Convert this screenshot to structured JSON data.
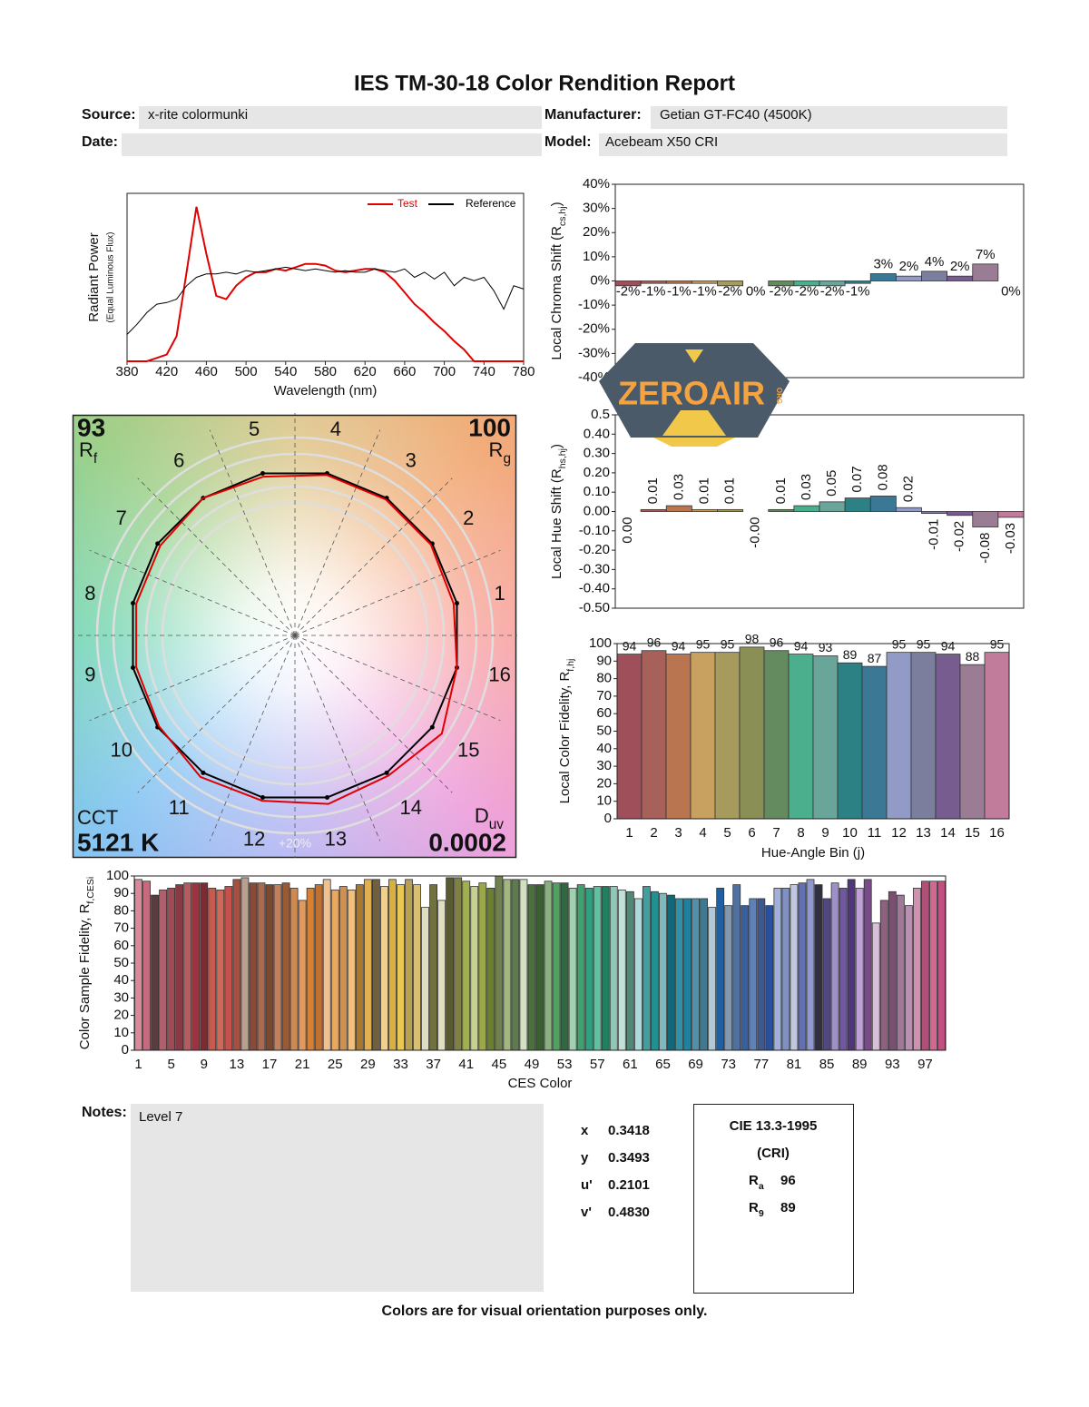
{
  "header": {
    "title": "IES TM-30-18 Color Rendition Report",
    "source_label": "Source:",
    "source": "x-rite colormunki",
    "manufacturer_label": "Manufacturer:",
    "manufacturer": "Getian GT-FC40 (4500K)",
    "date_label": "Date:",
    "model_label": "Model:",
    "model": "Acebeam X50 CRI"
  },
  "watermark": {
    "text": "ZEROAIR",
    "suffix": "ORG"
  },
  "chart_data": [
    {
      "type": "line",
      "y_label": "Radiant Power",
      "y_sublabel": "(Equal Luminous Flux)",
      "x_label": "Wavelength (nm)",
      "x": [
        380,
        390,
        400,
        410,
        420,
        430,
        440,
        450,
        460,
        470,
        480,
        490,
        500,
        510,
        520,
        530,
        540,
        550,
        560,
        570,
        580,
        590,
        600,
        610,
        620,
        630,
        640,
        650,
        660,
        670,
        680,
        690,
        700,
        710,
        720,
        730,
        740,
        750,
        760,
        770,
        780
      ],
      "xlim": [
        380,
        780
      ],
      "xticks": [
        380,
        420,
        460,
        500,
        540,
        580,
        620,
        660,
        700,
        740,
        780
      ],
      "ylim": [
        0,
        1
      ],
      "legend": "upper right",
      "series": [
        {
          "name": "Test",
          "color": "#e00000",
          "values": [
            0,
            0,
            0,
            0.02,
            0.04,
            0.15,
            0.53,
            0.92,
            0.64,
            0.39,
            0.37,
            0.45,
            0.5,
            0.53,
            0.53,
            0.55,
            0.54,
            0.56,
            0.58,
            0.58,
            0.57,
            0.54,
            0.53,
            0.54,
            0.55,
            0.55,
            0.53,
            0.48,
            0.41,
            0.34,
            0.29,
            0.23,
            0.18,
            0.12,
            0.07,
            0,
            0,
            0,
            0,
            0,
            0
          ]
        },
        {
          "name": "Reference",
          "color": "#000000",
          "values": [
            0.16,
            0.22,
            0.29,
            0.34,
            0.35,
            0.37,
            0.45,
            0.5,
            0.52,
            0.52,
            0.53,
            0.52,
            0.54,
            0.53,
            0.54,
            0.55,
            0.56,
            0.55,
            0.54,
            0.55,
            0.54,
            0.53,
            0.54,
            0.53,
            0.53,
            0.55,
            0.54,
            0.53,
            0.55,
            0.5,
            0.53,
            0.49,
            0.53,
            0.45,
            0.5,
            0.48,
            0.5,
            0.42,
            0.31,
            0.45,
            0.43
          ]
        }
      ]
    },
    {
      "type": "bar",
      "y_label": {
        "text": "Local Chroma Shift (R",
        "sub": "cs,hj",
        "end": ")"
      },
      "ylim": [
        -40,
        40
      ],
      "yticks": [
        {
          "value": -40,
          "label": "-40%"
        },
        {
          "value": -30,
          "label": "-30%"
        },
        {
          "value": -20,
          "label": "-20%"
        },
        {
          "value": -10,
          "label": "-10%"
        },
        {
          "value": 0,
          "label": "0%"
        },
        {
          "value": 10,
          "label": "10%"
        },
        {
          "value": 20,
          "label": "20%"
        },
        {
          "value": 30,
          "label": "30%"
        },
        {
          "value": 40,
          "label": "40%"
        }
      ],
      "values": [
        -2,
        -1,
        -1,
        -1,
        -2,
        0,
        -2,
        -2,
        -2,
        -1,
        3,
        2,
        4,
        2,
        7,
        0
      ],
      "value_labels": [
        "-2%",
        "-1%",
        "-1%",
        "-1%",
        "-2%",
        "0%",
        "-2%",
        "-2%",
        "-2%",
        "-1%",
        "3%",
        "2%",
        "4%",
        "2%",
        "7%",
        "0%"
      ],
      "colors": [
        "#9e4f5a",
        "#a8605a",
        "#b8754f",
        "#c8a060",
        "#a79a5d",
        "#8a8f55",
        "#648a60",
        "#4bae8c",
        "#6aa59a",
        "#2c8185",
        "#3b7895",
        "#929bc6",
        "#7c7e9e",
        "#775c8f",
        "#9a7d94",
        "#c27c9b"
      ]
    },
    {
      "type": "bar",
      "y_label": {
        "text": "Local Hue Shift (R",
        "sub": "hs,hj",
        "end": ")"
      },
      "ylim": [
        -0.5,
        0.5
      ],
      "yticks": [
        {
          "value": -0.5,
          "label": "-0.50"
        },
        {
          "value": -0.4,
          "label": "-0.40"
        },
        {
          "value": -0.3,
          "label": "-0.30"
        },
        {
          "value": -0.2,
          "label": "-0.20"
        },
        {
          "value": -0.1,
          "label": "-0.10"
        },
        {
          "value": 0,
          "label": "0.00"
        },
        {
          "value": 0.1,
          "label": "0.10"
        },
        {
          "value": 0.2,
          "label": "0.20"
        },
        {
          "value": 0.3,
          "label": "0.30"
        },
        {
          "value": 0.4,
          "label": "0.40"
        },
        0.5
      ],
      "values": [
        0,
        0.01,
        0.03,
        0.01,
        0.01,
        0,
        0.01,
        0.03,
        0.05,
        0.07,
        0.08,
        0.02,
        -0.01,
        -0.02,
        -0.08,
        -0.03
      ],
      "value_labels": [
        "0.00",
        "0.01",
        "0.03",
        "0.01",
        "0.01",
        "-0.00",
        "0.01",
        "0.03",
        "0.05",
        "0.07",
        "0.08",
        "0.02",
        "-0.01",
        "-0.02",
        "-0.08",
        "-0.03"
      ],
      "colors": [
        "#9e4f5a",
        "#a8605a",
        "#b8754f",
        "#c8a060",
        "#a79a5d",
        "#8a8f55",
        "#648a60",
        "#4bae8c",
        "#6aa59a",
        "#2c8185",
        "#3b7895",
        "#929bc6",
        "#7c7e9e",
        "#775c8f",
        "#9a7d94",
        "#c27c9b"
      ]
    },
    {
      "type": "bar",
      "y_label": {
        "text": "Local Color Fidelity, R",
        "sub": "f,hj",
        "end": ""
      },
      "x_label": "Hue-Angle Bin (j)",
      "categories": [
        1,
        2,
        3,
        4,
        5,
        6,
        7,
        8,
        9,
        10,
        11,
        12,
        13,
        14,
        15,
        16
      ],
      "ylim": [
        0,
        100
      ],
      "yticks": [
        0,
        10,
        20,
        30,
        40,
        50,
        60,
        70,
        80,
        90,
        100
      ],
      "data_labels": true,
      "values": [
        94,
        96,
        94,
        95,
        95,
        98,
        96,
        94,
        93,
        89,
        87,
        95,
        95,
        94,
        88,
        95
      ],
      "colors": [
        "#9e4f5a",
        "#a8605a",
        "#b8754f",
        "#c8a060",
        "#a79a5d",
        "#8a8f55",
        "#648a60",
        "#4bae8c",
        "#6aa59a",
        "#2c8185",
        "#3b7895",
        "#929bc6",
        "#7c7e9e",
        "#775c8f",
        "#9a7d94",
        "#c27c9b"
      ]
    },
    {
      "type": "polar",
      "categories": [
        1,
        2,
        3,
        4,
        5,
        6,
        7,
        8,
        9,
        10,
        11,
        12,
        13,
        14,
        15,
        16
      ],
      "ring_label": "+20%",
      "series": [
        {
          "color": "#e00000",
          "values": [
            0.98,
            0.99,
            0.99,
            0.99,
            0.98,
            1.0,
            0.98,
            0.98,
            0.98,
            0.99,
            1.03,
            1.02,
            1.04,
            1.02,
            1.07,
            1.0
          ]
        },
        {
          "color": "#000000",
          "values": [
            1,
            1,
            1,
            1,
            1,
            1,
            1,
            1,
            1,
            1,
            1,
            1,
            1,
            1,
            1,
            1
          ]
        }
      ],
      "rf": {
        "value": 93,
        "label": "R",
        "sub": "f"
      },
      "rg": {
        "value": 100,
        "label": "R",
        "sub": "g"
      },
      "cct": {
        "label": "CCT",
        "value": "5121 K"
      },
      "duv": {
        "label": "D",
        "sub": "uv",
        "value": 0.0002
      }
    },
    {
      "type": "bar",
      "y_label": {
        "text": "Color Sample Fidelity, R",
        "sub": "f,CESi",
        "end": ""
      },
      "x_label": "CES Color",
      "categories": [
        1,
        null,
        null,
        null,
        5,
        null,
        null,
        null,
        9,
        null,
        null,
        null,
        13,
        null,
        null,
        null,
        17,
        null,
        null,
        null,
        21,
        null,
        null,
        null,
        25,
        null,
        null,
        null,
        29,
        null,
        null,
        null,
        33,
        null,
        null,
        null,
        37,
        null,
        null,
        null,
        41,
        null,
        null,
        null,
        45,
        null,
        null,
        null,
        49,
        null,
        null,
        null,
        53,
        null,
        null,
        null,
        57,
        null,
        null,
        null,
        61,
        null,
        null,
        null,
        65,
        null,
        null,
        null,
        69,
        null,
        null,
        null,
        73,
        null,
        null,
        null,
        77,
        null,
        null,
        null,
        81,
        null,
        null,
        null,
        85,
        null,
        null,
        null,
        89,
        null,
        null,
        null,
        93,
        null,
        null,
        null,
        97,
        null,
        null
      ],
      "ylim": [
        0,
        100
      ],
      "yticks": [
        0,
        10,
        20,
        30,
        40,
        50,
        60,
        70,
        80,
        90,
        100
      ],
      "values": [
        98,
        97,
        89,
        92,
        93,
        95,
        96,
        96,
        96,
        93,
        92,
        94,
        98,
        99,
        96,
        96,
        95,
        95,
        96,
        93,
        86,
        93,
        95,
        98,
        92,
        94,
        92,
        95,
        98,
        98,
        94,
        98,
        95,
        98,
        95,
        82,
        95,
        86,
        99,
        99,
        97,
        94,
        96,
        93,
        100,
        98,
        98,
        98,
        95,
        95,
        97,
        96,
        96,
        93,
        95,
        93,
        94,
        94,
        94,
        92,
        91,
        87,
        94,
        91,
        90,
        89,
        87,
        87,
        87,
        87,
        82,
        93,
        83,
        95,
        83,
        87,
        87,
        83,
        93,
        93,
        95,
        96,
        98,
        95,
        87,
        96,
        93,
        98,
        93,
        98,
        73,
        86,
        91,
        89,
        83,
        93,
        97,
        97,
        97
      ],
      "colors": [
        "#d98a9a",
        "#c46b7d",
        "#5a3b3e",
        "#b0606c",
        "#a04a55",
        "#8a3a45",
        "#b65b5e",
        "#9a3540",
        "#7e2a33",
        "#c85a50",
        "#d0685a",
        "#c8504a",
        "#a85040",
        "#b8a090",
        "#8a4a3a",
        "#a86a50",
        "#7a4a30",
        "#c08060",
        "#9a5a35",
        "#d08a50",
        "#e09a60",
        "#d88030",
        "#c07030",
        "#f0c090",
        "#e8a860",
        "#d09050",
        "#f0c080",
        "#a87830",
        "#e0b050",
        "#706040",
        "#f0d090",
        "#d8b040",
        "#e8c850",
        "#b8a050",
        "#d8c070",
        "#e0dcc0",
        "#707040",
        "#e0e0c0",
        "#5a5a30",
        "#808040",
        "#a0b050",
        "#c8d090",
        "#9aa848",
        "#6a8030",
        "#708050",
        "#a0b880",
        "#607a50",
        "#d0e0c0",
        "#4a7040",
        "#3a6030",
        "#8ab080",
        "#50a060",
        "#306840",
        "#a0d0b0",
        "#40a070",
        "#30a080",
        "#60c0a0",
        "#208060",
        "#90c8b8",
        "#c0e0d8",
        "#508878",
        "#b0d8d8",
        "#40a0a0",
        "#209090",
        "#80b8c0",
        "#106878",
        "#3090a8",
        "#2080a0",
        "#5090a8",
        "#407890",
        "#b0c8d8",
        "#2060a0",
        "#8098b0",
        "#5070a0",
        "#3860a0",
        "#6080b8",
        "#405890",
        "#2850a0",
        "#a0b0d8",
        "#8090c0",
        "#c0c8e0",
        "#6070b0",
        "#9098d0",
        "#303040",
        "#504880",
        "#a090c8",
        "#7058a0",
        "#503878",
        "#c0a0d8",
        "#7a4a8a",
        "#d8c0d8",
        "#906080",
        "#7a5070",
        "#a07898",
        "#b890b0",
        "#d090b0",
        "#b05078",
        "#d06890",
        "#c05080"
      ]
    }
  ],
  "notes": {
    "label": "Notes:",
    "text": "Level 7"
  },
  "chromaticity": {
    "rows": [
      {
        "label": "x",
        "value": "0.3418"
      },
      {
        "label": "y",
        "value": "0.3493"
      },
      {
        "label": "u'",
        "value": "0.2101"
      },
      {
        "label": "v'",
        "value": "0.4830"
      }
    ]
  },
  "cri": {
    "title": "CIE 13.3-1995",
    "subtitle": "(CRI)",
    "rows": [
      {
        "label": "R",
        "sub": "a",
        "value": "96"
      },
      {
        "label": "R",
        "sub": "9",
        "value": "89"
      }
    ]
  },
  "footer": "Colors are for visual orientation purposes only."
}
